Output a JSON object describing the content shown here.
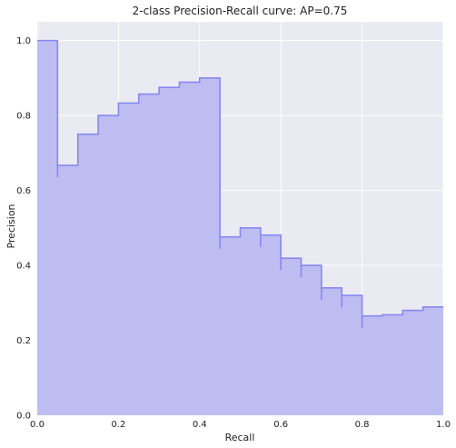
{
  "chart_data": {
    "type": "area",
    "title": "2-class Precision-Recall curve: AP=0.75",
    "xlabel": "Recall",
    "ylabel": "Precision",
    "xlim": [
      0,
      1
    ],
    "ylim": [
      0,
      1.05
    ],
    "xticks": [
      "0.0",
      "0.2",
      "0.4",
      "0.6",
      "0.8",
      "1.0"
    ],
    "yticks": [
      "0.0",
      "0.2",
      "0.4",
      "0.6",
      "0.8",
      "1.0"
    ],
    "grid": true,
    "fill_color": "#b8b8f2",
    "line_color": "#8888f0",
    "plot_background": "#eaeaf2",
    "series": [
      {
        "x": [
          0.0,
          0.05,
          0.1,
          0.15,
          0.2,
          0.25,
          0.3,
          0.35,
          0.4,
          0.45,
          0.5,
          0.55,
          0.6,
          0.65,
          0.7,
          0.75,
          0.8,
          0.85,
          0.9,
          0.95,
          1.0
        ],
        "y": [
          1.0,
          0.667,
          0.75,
          0.8,
          0.833,
          0.857,
          0.875,
          0.889,
          0.9,
          0.476,
          0.5,
          0.481,
          0.419,
          0.4,
          0.34,
          0.32,
          0.265,
          0.268,
          0.28,
          0.289,
          0.289
        ]
      }
    ]
  }
}
